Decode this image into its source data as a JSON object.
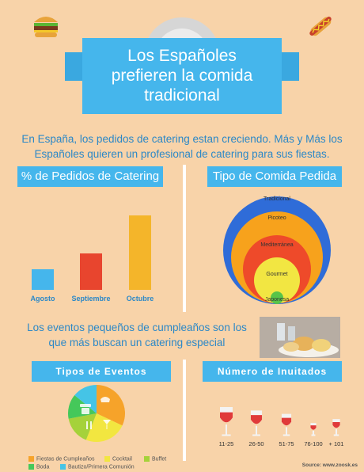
{
  "title_lines": [
    "Los Españoles",
    "prefieren la comida",
    "tradicional"
  ],
  "intro": "En España, los pedidos de catering estan creciendo. Más y Más los Españoles quieren un profesional de catering para sus fiestas.",
  "sections": {
    "orders_title": "% de Pedidos de Catering",
    "food_title": "Tipo de Comida Pedida",
    "events_title": "Tipos de Eventos",
    "guests_title": "Número de Inuitados"
  },
  "events_text": "Los eventos pequeños de cumpleaños son los que más buscan un catering especial",
  "source": "Source: www.zoosk.es",
  "chart_data": [
    {
      "type": "bar",
      "title": "% de Pedidos de Catering",
      "categories": [
        "Agosto",
        "Septiembre",
        "Octubre"
      ],
      "values": [
        22,
        38,
        78
      ],
      "colors": [
        "#45b6ec",
        "#e8452e",
        "#f4b52a"
      ],
      "ylim": [
        0,
        100
      ]
    },
    {
      "type": "nested-circles",
      "title": "Tipo de Comida Pedida",
      "categories": [
        "Tradicional",
        "Picoteo",
        "Mediterránea",
        "Gourmet",
        "Japonesa"
      ],
      "values": [
        100,
        85,
        64,
        43,
        12
      ],
      "colors": [
        "#2f6cd8",
        "#f7a21c",
        "#ee4a2a",
        "#f2e642",
        "#58c448"
      ]
    },
    {
      "type": "pie",
      "title": "Tipos de Eventos",
      "categories": [
        "Fiestas de Cumpleaños",
        "Cocktail",
        "Buffet",
        "Boda",
        "Bautizo/Primera Comunión"
      ],
      "values": [
        32,
        24,
        16,
        14,
        14
      ],
      "colors": [
        "#f6a32a",
        "#f2e640",
        "#a5d23a",
        "#45c85a",
        "#45c4e6"
      ]
    },
    {
      "type": "bar",
      "title": "Número de Inuitados",
      "categories": [
        "11-25",
        "26-50",
        "51-75",
        "76-100",
        "+ 101"
      ],
      "values": [
        100,
        88,
        76,
        44,
        58
      ],
      "colors": [
        "#e03a3a",
        "#e03a3a",
        "#e03a3a",
        "#e03a3a",
        "#e03a3a"
      ]
    }
  ]
}
